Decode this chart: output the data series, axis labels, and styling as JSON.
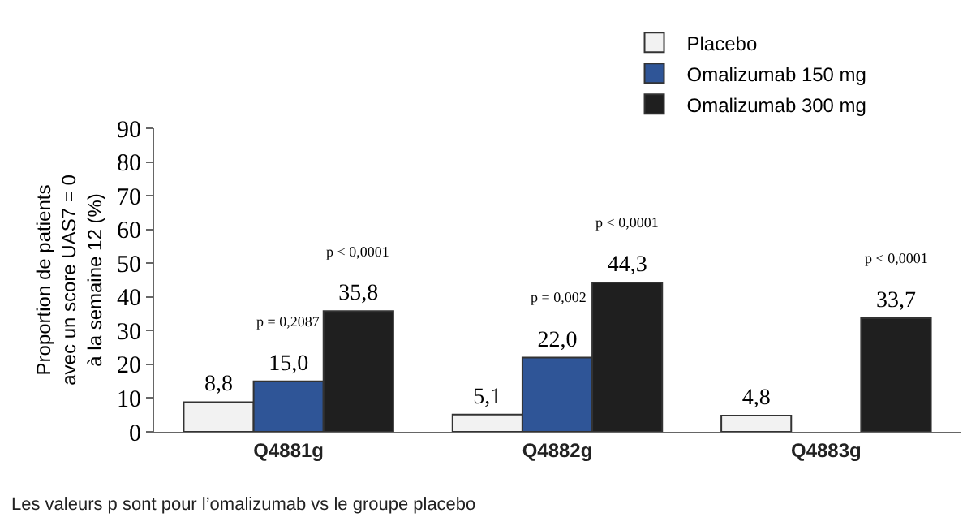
{
  "chart_data": {
    "type": "bar",
    "ylabel": "Proportion de patients\navec un score UAS7 = 0\nà la semaine 12 (%)",
    "categories": [
      "Q4881g",
      "Q4882g",
      "Q4883g"
    ],
    "series": [
      {
        "name": "Placebo",
        "color": "#f2f2f2",
        "values": [
          8.8,
          5.1,
          4.8
        ],
        "value_labels": [
          "8,8",
          "5,1",
          "4,8"
        ]
      },
      {
        "name": "Omalizumab 150 mg",
        "color": "#2f5597",
        "values": [
          15.0,
          22.0,
          null
        ],
        "value_labels": [
          "15,0",
          "22,0",
          null
        ]
      },
      {
        "name": "Omalizumab 300 mg",
        "color": "#1f1f1f",
        "values": [
          35.8,
          44.3,
          33.7
        ],
        "value_labels": [
          "35,8",
          "44,3",
          "33,7"
        ]
      }
    ],
    "ylim": [
      0,
      90
    ],
    "yticks": [
      0,
      10,
      20,
      30,
      40,
      50,
      60,
      70,
      80,
      90
    ],
    "grid": false,
    "legend": "top right",
    "annotations": [
      "p = 0,2087",
      "p < 0,0001",
      "p = 0,002",
      "p < 0,0001",
      "p < 0,0001",
      "Les valeurs p sont pour l’omalizumab vs le groupe placebo"
    ]
  }
}
